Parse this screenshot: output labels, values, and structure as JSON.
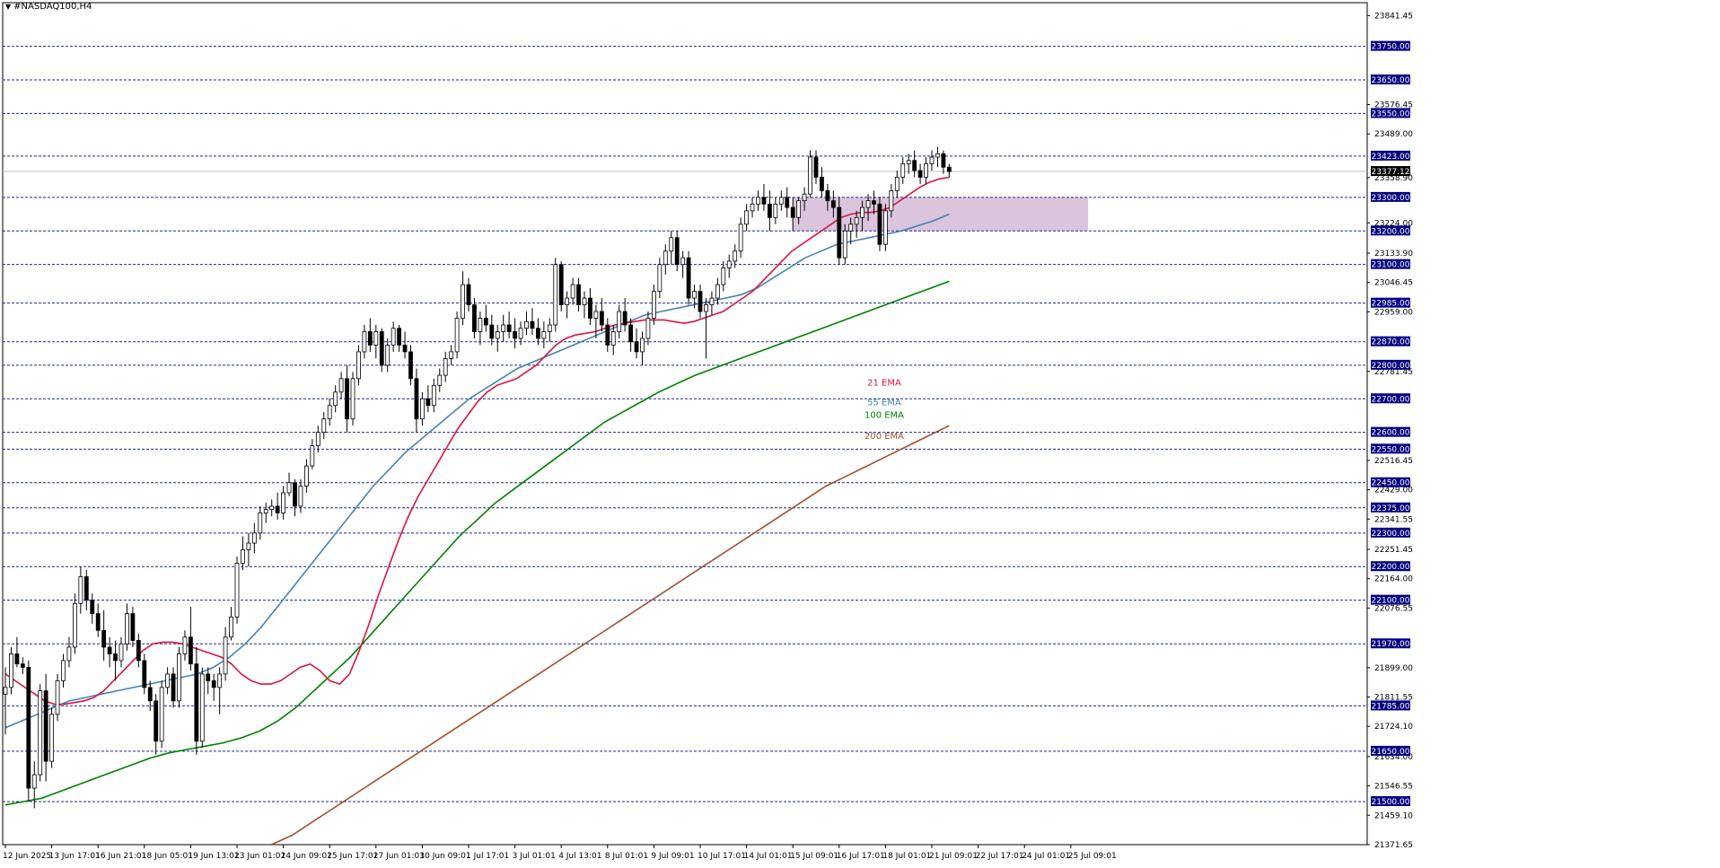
{
  "window": {
    "title": "#NASDAQ100,H4"
  },
  "chart_data": {
    "type": "candlestick",
    "symbol": "#NASDAQ100",
    "timeframe": "H4",
    "current_price": "23377.12",
    "price_axis_ticks": [
      "23841.45",
      "23576.45",
      "23489.00",
      "23358.90",
      "23224.00",
      "23133.90",
      "23046.45",
      "22959.00",
      "22781.45",
      "22516.45",
      "22429.00",
      "22341.55",
      "22251.45",
      "22164.00",
      "22076.55",
      "21899.00",
      "21811.55",
      "21724.10",
      "21634.00",
      "21546.55",
      "21459.10",
      "21371.65"
    ],
    "price_axis_ticks_values": [
      23841.45,
      23576.45,
      23489.0,
      23358.9,
      23224.0,
      23133.9,
      23046.45,
      22959.0,
      22781.45,
      22516.45,
      22429.0,
      22341.55,
      22251.45,
      22164.0,
      22076.55,
      21899.0,
      21811.55,
      21724.1,
      21634.0,
      21546.55,
      21459.1,
      21371.65
    ],
    "levels": [
      {
        "label": "23750.00",
        "value": 23750
      },
      {
        "label": "23650.00",
        "value": 23650
      },
      {
        "label": "23550.00",
        "value": 23550
      },
      {
        "label": "23423.00",
        "value": 23423
      },
      {
        "label": "23300.00",
        "value": 23300
      },
      {
        "label": "23200.00",
        "value": 23200
      },
      {
        "label": "23100.00",
        "value": 23100
      },
      {
        "label": "22985.00",
        "value": 22985
      },
      {
        "label": "22870.00",
        "value": 22870
      },
      {
        "label": "22800.00",
        "value": 22800
      },
      {
        "label": "22700.00",
        "value": 22700
      },
      {
        "label": "22600.00",
        "value": 22600
      },
      {
        "label": "22550.00",
        "value": 22550
      },
      {
        "label": "22450.00",
        "value": 22450
      },
      {
        "label": "22375.00",
        "value": 22375
      },
      {
        "label": "22300.00",
        "value": 22300
      },
      {
        "label": "22200.00",
        "value": 22200
      },
      {
        "label": "22100.00",
        "value": 22100
      },
      {
        "label": "21970.00",
        "value": 21970
      },
      {
        "label": "21785.00",
        "value": 21785
      },
      {
        "label": "21650.00",
        "value": 21650
      },
      {
        "label": "21500.00",
        "value": 21500
      }
    ],
    "x_axis_labels": [
      "12 Jun 2025",
      "13 Jun 17:01",
      "16 Jun 21:01",
      "18 Jun 05:01",
      "19 Jun 13:01",
      "23 Jun 01:01",
      "24 Jun 09:01",
      "25 Jun 17:01",
      "27 Jun 01:01",
      "30 Jun 09:01",
      "1 Jul 17:01",
      "3 Jul 01:01",
      "4 Jul 13:01",
      "8 Jul 01:01",
      "9 Jul 09:01",
      "10 Jul 17:01",
      "14 Jul 01:01",
      "15 Jul 09:01",
      "16 Jul 17:01",
      "18 Jul 01:01",
      "21 Jul 09:01",
      "22 Jul 17:01",
      "24 Jul 01:01",
      "25 Jul 09:01"
    ],
    "x_axis_label_bar_index": [
      0,
      8,
      16,
      24,
      32,
      40,
      48,
      56,
      64,
      72,
      80,
      88,
      96,
      104,
      112,
      120,
      128,
      136,
      144,
      152,
      160,
      168,
      176,
      184
    ],
    "zone": {
      "from_bar": 136,
      "to_bar": 187,
      "price_low": 23200,
      "price_high": 23300,
      "color": "#d6bfd9"
    },
    "legend": [
      {
        "name": "21 EMA",
        "color": "#dc143c",
        "label_price": 22740
      },
      {
        "name": "55 EMA",
        "color": "#4682b4",
        "label_price": 22680
      },
      {
        "name": "100 EMA",
        "color": "#008000",
        "label_price": 22643
      },
      {
        "name": "200 EMA",
        "color": "#a0522d",
        "label_price": 22580
      }
    ],
    "series_colors": {
      "up_body": "#ffffff",
      "down_body": "#000000",
      "wick": "#000000",
      "grid": "#1c2a8a",
      "axis_label_bg": "#000080",
      "axis_label_text": "#ffffff"
    },
    "y_range": [
      21371.65,
      23880
    ],
    "candles_ohlc": [
      [
        21820,
        21900,
        21700,
        21840
      ],
      [
        21840,
        21960,
        21820,
        21940
      ],
      [
        21940,
        21990,
        21900,
        21910
      ],
      [
        21910,
        21930,
        21880,
        21900
      ],
      [
        21900,
        21920,
        21500,
        21540
      ],
      [
        21540,
        21620,
        21480,
        21580
      ],
      [
        21580,
        21850,
        21560,
        21830
      ],
      [
        21830,
        21880,
        21560,
        21620
      ],
      [
        21620,
        21780,
        21600,
        21760
      ],
      [
        21760,
        21880,
        21740,
        21860
      ],
      [
        21860,
        21940,
        21840,
        21920
      ],
      [
        21920,
        21990,
        21900,
        21960
      ],
      [
        21960,
        22120,
        21940,
        22090
      ],
      [
        22090,
        22200,
        22060,
        22170
      ],
      [
        22170,
        22190,
        22070,
        22100
      ],
      [
        22100,
        22120,
        22030,
        22060
      ],
      [
        22060,
        22090,
        21990,
        22010
      ],
      [
        22010,
        22070,
        21920,
        21960
      ],
      [
        21960,
        21990,
        21900,
        21940
      ],
      [
        21940,
        21980,
        21860,
        21920
      ],
      [
        21920,
        21990,
        21900,
        21970
      ],
      [
        21970,
        22090,
        21950,
        22060
      ],
      [
        22060,
        22080,
        21960,
        21980
      ],
      [
        21980,
        22000,
        21900,
        21920
      ],
      [
        21920,
        21940,
        21820,
        21840
      ],
      [
        21840,
        21860,
        21770,
        21800
      ],
      [
        21800,
        21820,
        21640,
        21680
      ],
      [
        21680,
        21860,
        21660,
        21840
      ],
      [
        21840,
        21900,
        21820,
        21880
      ],
      [
        21880,
        21900,
        21780,
        21800
      ],
      [
        21800,
        21960,
        21780,
        21940
      ],
      [
        21940,
        22010,
        21920,
        21990
      ],
      [
        21990,
        22080,
        21890,
        21910
      ],
      [
        21910,
        21960,
        21640,
        21680
      ],
      [
        21680,
        21900,
        21660,
        21880
      ],
      [
        21880,
        21900,
        21820,
        21860
      ],
      [
        21860,
        21880,
        21800,
        21840
      ],
      [
        21840,
        21900,
        21760,
        21880
      ],
      [
        21880,
        22020,
        21860,
        21990
      ],
      [
        21990,
        22080,
        21980,
        22050
      ],
      [
        22050,
        22230,
        22030,
        22210
      ],
      [
        22210,
        22290,
        22190,
        22250
      ],
      [
        22250,
        22300,
        22200,
        22270
      ],
      [
        22270,
        22330,
        22240,
        22300
      ],
      [
        22300,
        22380,
        22280,
        22360
      ],
      [
        22360,
        22390,
        22330,
        22370
      ],
      [
        22370,
        22400,
        22350,
        22380
      ],
      [
        22380,
        22420,
        22340,
        22360
      ],
      [
        22360,
        22440,
        22340,
        22420
      ],
      [
        22420,
        22480,
        22410,
        22450
      ],
      [
        22450,
        22460,
        22350,
        22380
      ],
      [
        22380,
        22460,
        22360,
        22440
      ],
      [
        22440,
        22520,
        22420,
        22500
      ],
      [
        22500,
        22580,
        22490,
        22560
      ],
      [
        22560,
        22620,
        22540,
        22600
      ],
      [
        22600,
        22660,
        22580,
        22640
      ],
      [
        22640,
        22700,
        22620,
        22680
      ],
      [
        22680,
        22740,
        22660,
        22720
      ],
      [
        22720,
        22780,
        22700,
        22760
      ],
      [
        22760,
        22800,
        22600,
        22640
      ],
      [
        22640,
        22780,
        22620,
        22760
      ],
      [
        22760,
        22860,
        22740,
        22840
      ],
      [
        22840,
        22920,
        22820,
        22900
      ],
      [
        22900,
        22940,
        22840,
        22860
      ],
      [
        22860,
        22920,
        22820,
        22900
      ],
      [
        22900,
        22910,
        22780,
        22800
      ],
      [
        22800,
        22880,
        22780,
        22860
      ],
      [
        22860,
        22930,
        22840,
        22910
      ],
      [
        22910,
        22920,
        22840,
        22860
      ],
      [
        22860,
        22900,
        22820,
        22840
      ],
      [
        22840,
        22860,
        22740,
        22760
      ],
      [
        22760,
        22790,
        22600,
        22640
      ],
      [
        22640,
        22720,
        22620,
        22700
      ],
      [
        22700,
        22740,
        22660,
        22680
      ],
      [
        22680,
        22760,
        22660,
        22740
      ],
      [
        22740,
        22790,
        22720,
        22770
      ],
      [
        22770,
        22840,
        22750,
        22820
      ],
      [
        22820,
        22860,
        22800,
        22840
      ],
      [
        22840,
        22960,
        22820,
        22940
      ],
      [
        22940,
        23080,
        22920,
        23040
      ],
      [
        23040,
        23060,
        22960,
        22980
      ],
      [
        22980,
        23000,
        22880,
        22900
      ],
      [
        22900,
        22960,
        22860,
        22940
      ],
      [
        22940,
        22980,
        22900,
        22920
      ],
      [
        22920,
        22950,
        22860,
        22880
      ],
      [
        22880,
        22920,
        22840,
        22900
      ],
      [
        22900,
        22950,
        22870,
        22920
      ],
      [
        22920,
        22960,
        22880,
        22900
      ],
      [
        22900,
        22940,
        22850,
        22880
      ],
      [
        22880,
        22930,
        22860,
        22910
      ],
      [
        22910,
        22960,
        22890,
        22930
      ],
      [
        22930,
        22970,
        22890,
        22910
      ],
      [
        22910,
        22940,
        22860,
        22880
      ],
      [
        22880,
        22930,
        22850,
        22900
      ],
      [
        22900,
        22940,
        22870,
        22920
      ],
      [
        22920,
        23120,
        22900,
        23100
      ],
      [
        23100,
        23110,
        22960,
        22980
      ],
      [
        22980,
        23020,
        22940,
        23000
      ],
      [
        23000,
        23060,
        22980,
        23040
      ],
      [
        23040,
        23060,
        22960,
        22980
      ],
      [
        22980,
        23020,
        22940,
        23000
      ],
      [
        23000,
        23030,
        22920,
        22940
      ],
      [
        22940,
        22980,
        22880,
        22960
      ],
      [
        22960,
        23000,
        22900,
        22920
      ],
      [
        22920,
        22940,
        22840,
        22860
      ],
      [
        22860,
        22920,
        22830,
        22900
      ],
      [
        22900,
        22980,
        22880,
        22960
      ],
      [
        22960,
        23000,
        22900,
        22920
      ],
      [
        22920,
        22940,
        22840,
        22870
      ],
      [
        22870,
        22910,
        22820,
        22840
      ],
      [
        22840,
        22900,
        22800,
        22880
      ],
      [
        22880,
        22960,
        22860,
        22940
      ],
      [
        22940,
        23040,
        22920,
        23020
      ],
      [
        23020,
        23120,
        23000,
        23100
      ],
      [
        23100,
        23160,
        23070,
        23140
      ],
      [
        23140,
        23200,
        23100,
        23180
      ],
      [
        23180,
        23200,
        23080,
        23100
      ],
      [
        23100,
        23140,
        23060,
        23120
      ],
      [
        23120,
        23140,
        22980,
        23000
      ],
      [
        23000,
        23040,
        22970,
        23020
      ],
      [
        23020,
        23040,
        22940,
        22960
      ],
      [
        22960,
        23000,
        22820,
        22980
      ],
      [
        22980,
        23020,
        22950,
        23000
      ],
      [
        23000,
        23060,
        22980,
        23040
      ],
      [
        23040,
        23110,
        23020,
        23090
      ],
      [
        23090,
        23130,
        23060,
        23110
      ],
      [
        23110,
        23160,
        23090,
        23140
      ],
      [
        23140,
        23240,
        23120,
        23220
      ],
      [
        23220,
        23280,
        23200,
        23260
      ],
      [
        23260,
        23300,
        23240,
        23280
      ],
      [
        23280,
        23320,
        23260,
        23300
      ],
      [
        23300,
        23340,
        23260,
        23280
      ],
      [
        23280,
        23320,
        23200,
        23240
      ],
      [
        23240,
        23300,
        23220,
        23280
      ],
      [
        23280,
        23320,
        23260,
        23300
      ],
      [
        23300,
        23330,
        23240,
        23270
      ],
      [
        23270,
        23300,
        23200,
        23240
      ],
      [
        23240,
        23300,
        23220,
        23290
      ],
      [
        23290,
        23330,
        23260,
        23310
      ],
      [
        23310,
        23440,
        23300,
        23420
      ],
      [
        23420,
        23440,
        23340,
        23360
      ],
      [
        23360,
        23390,
        23300,
        23320
      ],
      [
        23320,
        23340,
        23260,
        23290
      ],
      [
        23290,
        23320,
        23240,
        23270
      ],
      [
        23270,
        23300,
        23100,
        23120
      ],
      [
        23120,
        23220,
        23100,
        23200
      ],
      [
        23200,
        23240,
        23160,
        23220
      ],
      [
        23220,
        23260,
        23180,
        23240
      ],
      [
        23240,
        23290,
        23200,
        23270
      ],
      [
        23270,
        23310,
        23230,
        23290
      ],
      [
        23290,
        23320,
        23250,
        23280
      ],
      [
        23280,
        23300,
        23140,
        23160
      ],
      [
        23160,
        23280,
        23140,
        23260
      ],
      [
        23260,
        23340,
        23240,
        23320
      ],
      [
        23320,
        23380,
        23300,
        23360
      ],
      [
        23360,
        23420,
        23340,
        23400
      ],
      [
        23400,
        23430,
        23370,
        23410
      ],
      [
        23410,
        23440,
        23360,
        23380
      ],
      [
        23380,
        23400,
        23340,
        23360
      ],
      [
        23360,
        23420,
        23340,
        23400
      ],
      [
        23400,
        23440,
        23380,
        23420
      ],
      [
        23420,
        23450,
        23390,
        23430
      ],
      [
        23430,
        23440,
        23370,
        23390
      ],
      [
        23390,
        23400,
        23360,
        23377
      ]
    ],
    "ema21_values": [
      21880,
      21860,
      21840,
      21820,
      21800,
      21790,
      21790,
      21795,
      21800,
      21810,
      21830,
      21860,
      21890,
      21920,
      21950,
      21970,
      21975,
      21975,
      21970,
      21960,
      21950,
      21940,
      21930,
      21910,
      21880,
      21860,
      21850,
      21850,
      21860,
      21880,
      21900,
      21910,
      21890,
      21860,
      21850,
      21880,
      21950,
      22030,
      22120,
      22200,
      22280,
      22350,
      22410,
      22460,
      22510,
      22560,
      22610,
      22650,
      22690,
      22720,
      22740,
      22750,
      22760,
      22780,
      22800,
      22830,
      22860,
      22880,
      22890,
      22895,
      22900,
      22910,
      22920,
      22925,
      22930,
      22935,
      22935,
      22935,
      22930,
      22925,
      22930,
      22940,
      22950,
      22960,
      22980,
      23000,
      23020,
      23050,
      23080,
      23110,
      23140,
      23160,
      23180,
      23200,
      23220,
      23240,
      23250,
      23255,
      23255,
      23260,
      23270,
      23290,
      23310,
      23330,
      23345,
      23355,
      23360
    ],
    "ema55_values": [
      21720,
      21740,
      21760,
      21780,
      21800,
      21810,
      21820,
      21830,
      21840,
      21850,
      21860,
      21870,
      21880,
      21900,
      21930,
      21970,
      22020,
      22080,
      22140,
      22200,
      22260,
      22320,
      22380,
      22440,
      22490,
      22540,
      22580,
      22620,
      22660,
      22700,
      22730,
      22760,
      22790,
      22810,
      22830,
      22850,
      22870,
      22890,
      22910,
      22930,
      22950,
      22960,
      22970,
      22980,
      22990,
      23000,
      23010,
      23030,
      23060,
      23090,
      23120,
      23140,
      23160,
      23170,
      23180,
      23190,
      23200,
      23215,
      23230,
      23250
    ],
    "ema100_values": [
      21490,
      21500,
      21510,
      21530,
      21550,
      21570,
      21590,
      21610,
      21630,
      21645,
      21655,
      21665,
      21675,
      21690,
      21710,
      21740,
      21780,
      21830,
      21880,
      21930,
      21990,
      22050,
      22110,
      22170,
      22230,
      22290,
      22340,
      22390,
      22430,
      22470,
      22510,
      22550,
      22590,
      22630,
      22660,
      22690,
      22720,
      22745,
      22770,
      22790,
      22810,
      22830,
      22850,
      22870,
      22890,
      22910,
      22930,
      22950,
      22970,
      22990,
      23010,
      23030,
      23050
    ],
    "ema200_values": [
      21372,
      21400,
      21440,
      21480,
      21520,
      21560,
      21600,
      21640,
      21680,
      21720,
      21760,
      21800,
      21840,
      21880,
      21920,
      21960,
      22000,
      22040,
      22080,
      22120,
      22160,
      22200,
      22240,
      22280,
      22320,
      22360,
      22400,
      22440,
      22470,
      22500,
      22530,
      22560,
      22590,
      22620
    ]
  }
}
